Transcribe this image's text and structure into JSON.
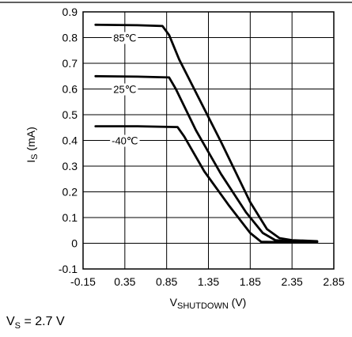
{
  "chart_data": {
    "type": "line",
    "xlabel": {
      "main": "V",
      "sub": "SHUTDOWN",
      "unit": " (V)"
    },
    "ylabel": {
      "main": "I",
      "sub": "S",
      "unit": " (mA)"
    },
    "xlim": [
      -0.15,
      2.85
    ],
    "ylim": [
      -0.1,
      0.9
    ],
    "x_ticks": [
      "-0.15",
      "0.35",
      "0.85",
      "1.35",
      "1.85",
      "2.35",
      "2.85"
    ],
    "y_ticks": [
      "-0.1",
      "0",
      "0.1",
      "0.2",
      "0.3",
      "0.4",
      "0.5",
      "0.6",
      "0.7",
      "0.8",
      "0.9"
    ],
    "grid": true,
    "series": [
      {
        "name": "85℃",
        "x": [
          0.0,
          0.5,
          0.8,
          0.88,
          1.0,
          1.5,
          1.85,
          2.05,
          2.2,
          2.35,
          2.65
        ],
        "y": [
          0.85,
          0.848,
          0.845,
          0.81,
          0.715,
          0.395,
          0.16,
          0.055,
          0.02,
          0.012,
          0.008
        ]
      },
      {
        "name": "25℃",
        "x": [
          0.0,
          0.5,
          0.88,
          0.96,
          1.2,
          1.5,
          1.8,
          2.0,
          2.15,
          2.3,
          2.65
        ],
        "y": [
          0.65,
          0.648,
          0.645,
          0.6,
          0.44,
          0.27,
          0.12,
          0.04,
          0.012,
          0.008,
          0.006
        ]
      },
      {
        "name": "-40℃",
        "x": [
          0.0,
          0.5,
          0.98,
          1.06,
          1.3,
          1.6,
          1.85,
          1.98,
          2.1,
          2.35,
          2.65
        ],
        "y": [
          0.455,
          0.455,
          0.452,
          0.415,
          0.28,
          0.145,
          0.04,
          0.006,
          0.005,
          0.005,
          0.005
        ]
      }
    ]
  },
  "condition": {
    "main": "V",
    "sub": "S",
    "rest": " = 2.7 V"
  }
}
